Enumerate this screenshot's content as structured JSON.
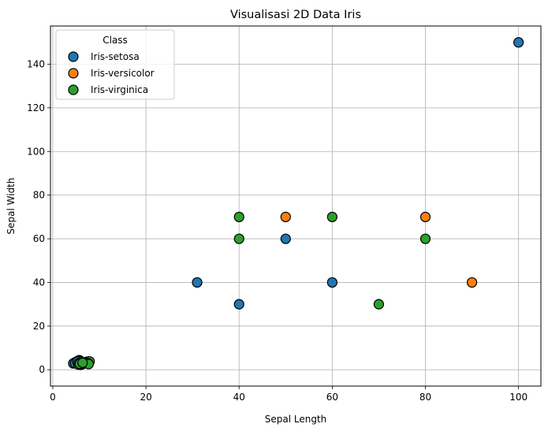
{
  "chart_data": {
    "type": "scatter",
    "title": "Visualisasi 2D Data Iris",
    "xlabel": "Sepal Length",
    "ylabel": "Sepal Width",
    "xlim": [
      -0.5,
      104.8
    ],
    "ylim": [
      -7.5,
      157.5
    ],
    "xticks": [
      0,
      20,
      40,
      60,
      80,
      100
    ],
    "yticks": [
      0,
      20,
      40,
      60,
      80,
      100,
      120,
      140
    ],
    "grid": true,
    "legend": {
      "title": "Class",
      "position": "top-left"
    },
    "series": [
      {
        "name": "Iris-setosa",
        "color": "#1f77b4",
        "points": [
          [
            4.9,
            3.0
          ],
          [
            4.7,
            3.2
          ],
          [
            5.0,
            3.6
          ],
          [
            5.4,
            3.9
          ],
          [
            5.1,
            3.5
          ],
          [
            4.6,
            3.1
          ],
          [
            5.7,
            4.4
          ],
          [
            4.4,
            2.9
          ],
          [
            5.2,
            3.4
          ],
          [
            5.5,
            4.2
          ],
          [
            4.8,
            3.0
          ],
          [
            5.3,
            3.7
          ],
          [
            31,
            40
          ],
          [
            40,
            30
          ],
          [
            50,
            60
          ],
          [
            60,
            40
          ],
          [
            100,
            150
          ]
        ]
      },
      {
        "name": "Iris-versicolor",
        "color": "#ff7f0e",
        "points": [
          [
            5.5,
            2.3
          ],
          [
            6.0,
            2.2
          ],
          [
            6.4,
            3.2
          ],
          [
            5.7,
            2.8
          ],
          [
            6.1,
            2.9
          ],
          [
            5.6,
            3.0
          ],
          [
            6.7,
            3.1
          ],
          [
            6.3,
            2.5
          ],
          [
            6.9,
            3.1
          ],
          [
            5.9,
            3.0
          ],
          [
            50,
            70
          ],
          [
            80,
            70
          ],
          [
            90,
            40
          ]
        ]
      },
      {
        "name": "Iris-virginica",
        "color": "#2ca02c",
        "points": [
          [
            7.7,
            3.8
          ],
          [
            7.2,
            3.6
          ],
          [
            6.5,
            3.0
          ],
          [
            7.9,
            3.8
          ],
          [
            7.6,
            3.0
          ],
          [
            6.3,
            3.3
          ],
          [
            7.4,
            2.8
          ],
          [
            6.7,
            3.3
          ],
          [
            5.8,
            2.7
          ],
          [
            7.7,
            2.6
          ],
          [
            6.4,
            3.2
          ],
          [
            40,
            70
          ],
          [
            40,
            60
          ],
          [
            60,
            70
          ],
          [
            70,
            30
          ],
          [
            80,
            60
          ]
        ]
      }
    ]
  }
}
